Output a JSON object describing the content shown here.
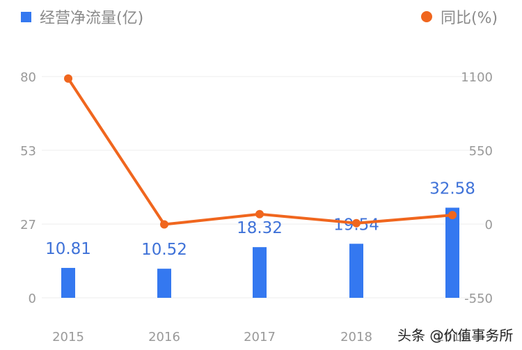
{
  "legend": {
    "bar_label": "经营净流量(亿)",
    "line_label": "同比(%)",
    "bar_color": "#3478f0",
    "line_color": "#f0661e"
  },
  "watermark": "头条 @价值事务所",
  "chart_data": {
    "type": "bar+line",
    "title": "",
    "categories": [
      "2015",
      "2016",
      "2017",
      "2018",
      "2019"
    ],
    "series": [
      {
        "name": "经营净流量(亿)",
        "type": "bar",
        "axis": "left",
        "values": [
          10.81,
          10.52,
          18.32,
          19.54,
          32.58
        ],
        "labels": [
          "10.81",
          "10.52",
          "18.32",
          "19.54",
          "32.58"
        ],
        "color": "#3478f0"
      },
      {
        "name": "同比(%)",
        "type": "line",
        "axis": "right",
        "values": [
          1085,
          -2.7,
          74.1,
          6.7,
          66.7
        ],
        "color": "#f0661e"
      }
    ],
    "left_axis": {
      "ticks": [
        "80",
        "53",
        "27",
        "0"
      ],
      "range": [
        0,
        80
      ]
    },
    "right_axis": {
      "ticks": [
        "1100",
        "550",
        "0",
        "-550"
      ],
      "range": [
        -550,
        1100
      ]
    },
    "grid": true,
    "legend_position": "top"
  }
}
